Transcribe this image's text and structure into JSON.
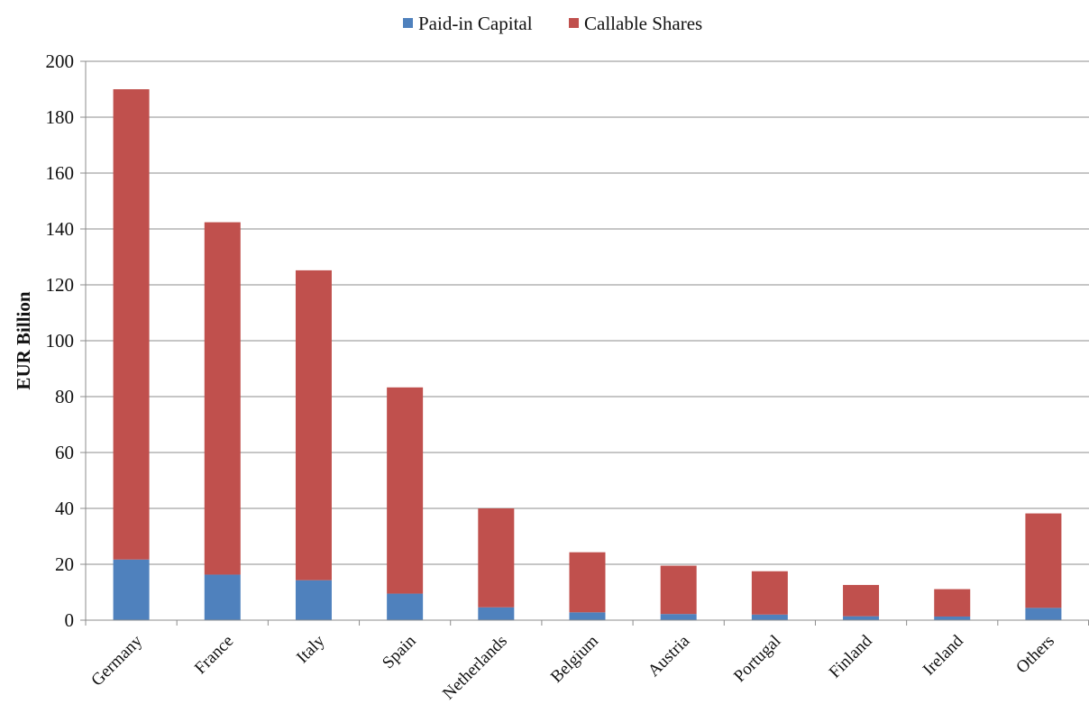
{
  "chart_data": {
    "type": "bar",
    "stacked": true,
    "title": "",
    "xlabel": "",
    "ylabel": "EUR Billion",
    "ylim": [
      0,
      200
    ],
    "yticks": [
      0,
      20,
      40,
      60,
      80,
      100,
      120,
      140,
      160,
      180,
      200
    ],
    "grid": true,
    "legend_position": "top",
    "categories": [
      "Germany",
      "France",
      "Italy",
      "Spain",
      "Netherlands",
      "Belgium",
      "Austria",
      "Portugal",
      "Finland",
      "Ireland",
      "Others"
    ],
    "series": [
      {
        "name": "Paid-in Capital",
        "color": "#4F81BD",
        "values": [
          21.7,
          16.3,
          14.3,
          9.5,
          4.6,
          2.8,
          2.2,
          2.0,
          1.4,
          1.3,
          4.4
        ]
      },
      {
        "name": "Callable Shares",
        "color": "#C0504D",
        "values": [
          168.3,
          126.1,
          110.9,
          73.8,
          35.4,
          21.5,
          17.3,
          15.5,
          11.2,
          9.8,
          33.8
        ]
      }
    ]
  }
}
